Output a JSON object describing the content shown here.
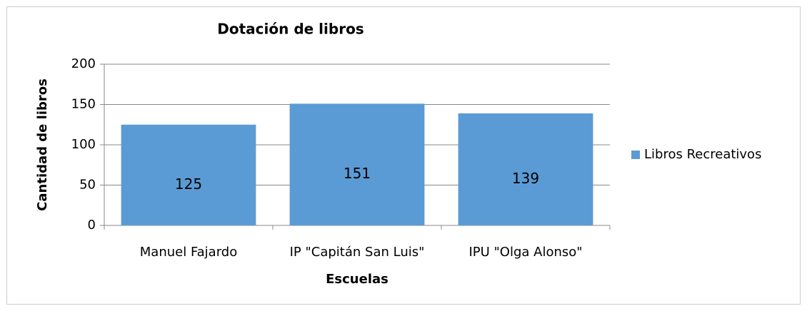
{
  "chart_data": {
    "type": "bar",
    "title": "Dotación de libros",
    "x_label": "Escuelas",
    "y_label": "Cantidad de libros",
    "categories": [
      "Manuel Fajardo",
      "IP \"Capitán San Luis\"",
      "IPU \"Olga Alonso\""
    ],
    "series": [
      {
        "name": "Libros Recreativos",
        "color": "#5b9bd5",
        "values": [
          125,
          151,
          139
        ]
      }
    ],
    "ylim": [
      0,
      200
    ],
    "yticks": [
      0,
      50,
      100,
      150,
      200
    ],
    "grid": true,
    "legend": "right"
  }
}
